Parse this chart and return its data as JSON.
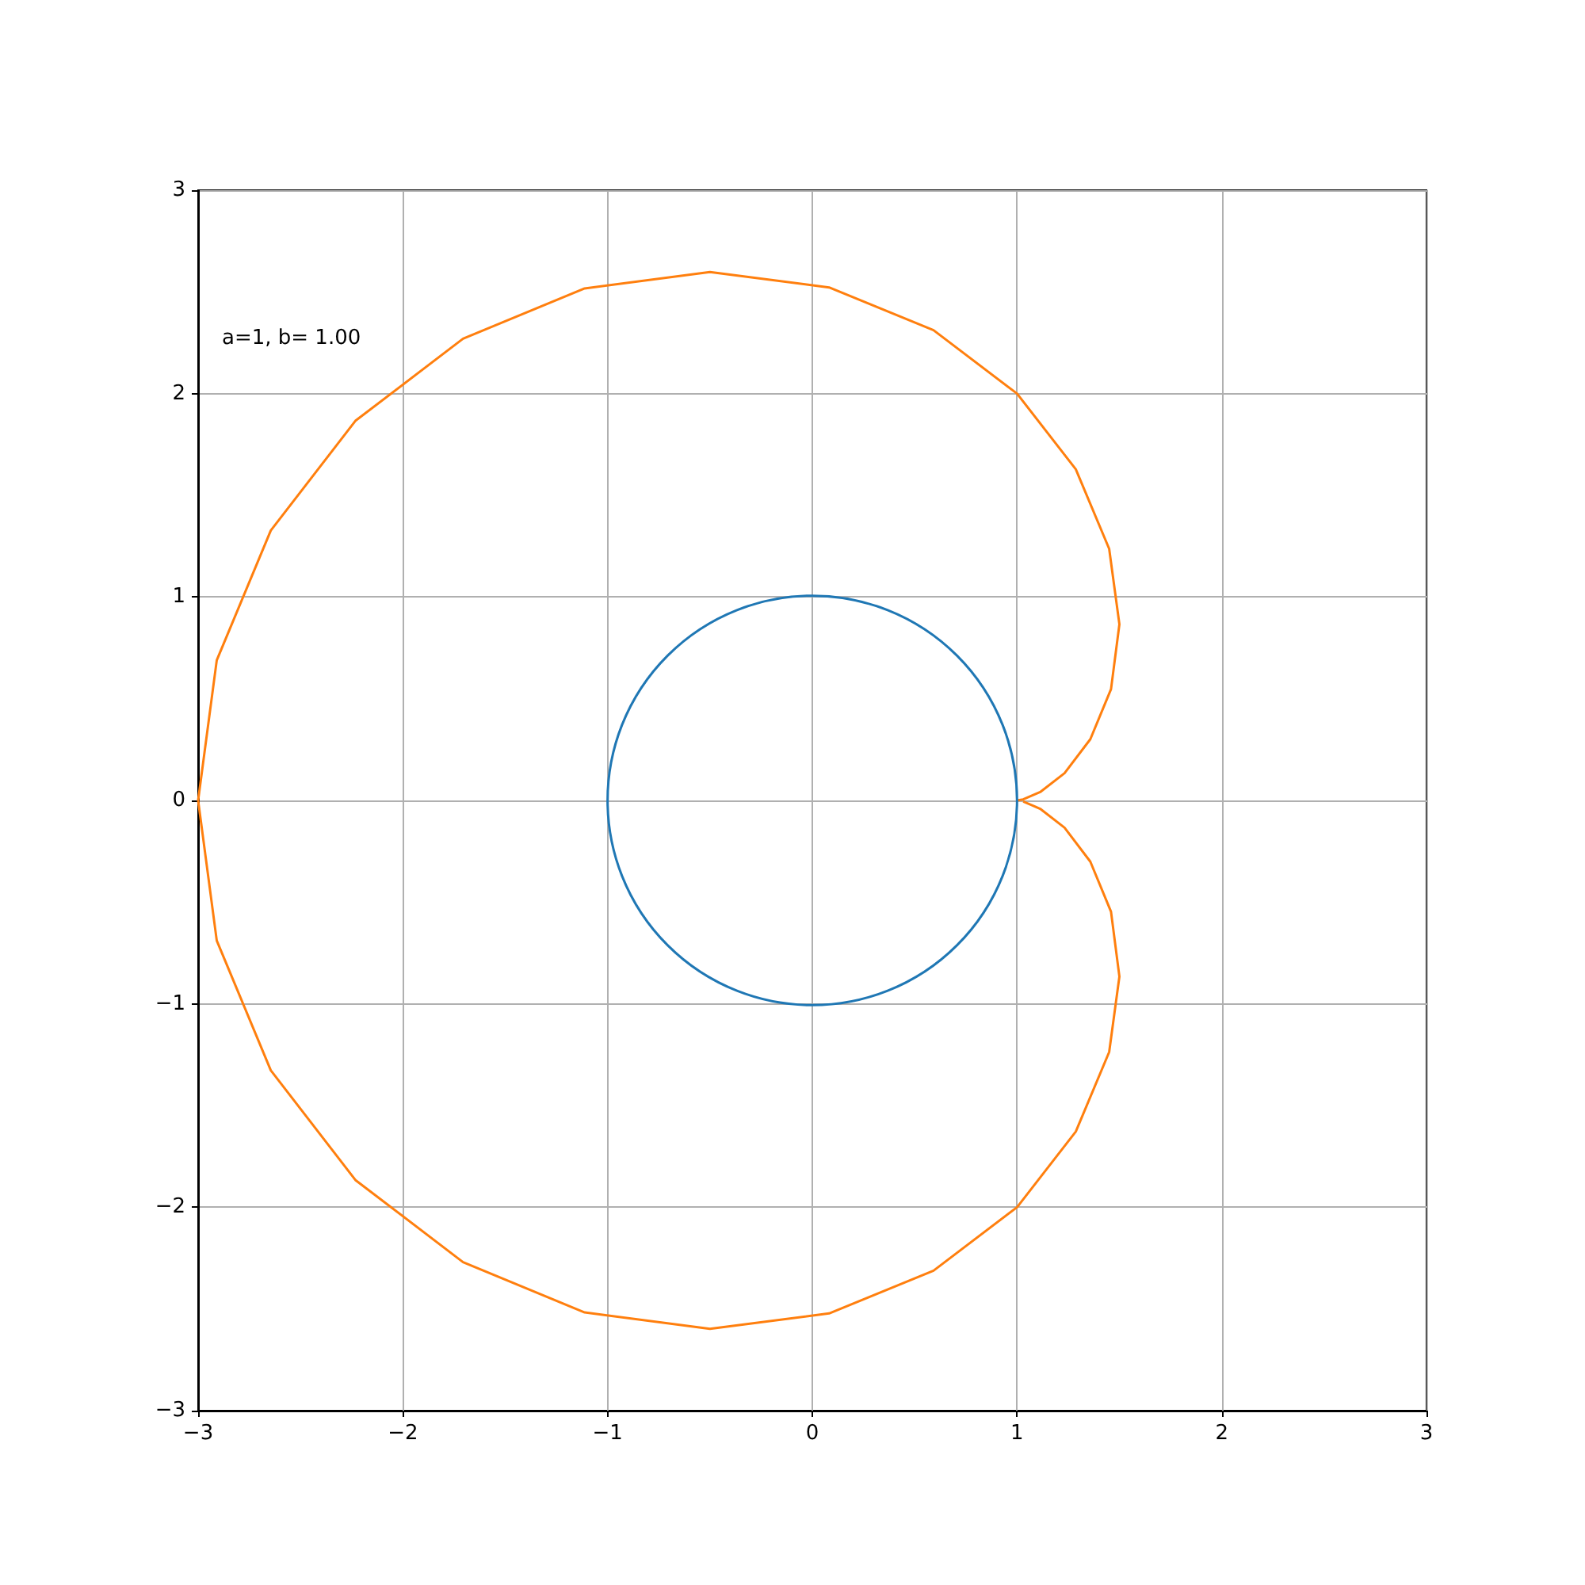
{
  "chart_data": {
    "type": "line",
    "xlim": [
      -3,
      3
    ],
    "ylim": [
      -3,
      3
    ],
    "xticks": [
      {
        "value": -3,
        "label": "−3"
      },
      {
        "value": -2,
        "label": "−2"
      },
      {
        "value": -1,
        "label": "−1"
      },
      0,
      1,
      2,
      3
    ],
    "yticks": [
      {
        "value": -3,
        "label": "−3"
      },
      {
        "value": -2,
        "label": "−2"
      },
      {
        "value": -1,
        "label": "−1"
      },
      0,
      1,
      2,
      3
    ],
    "grid": true,
    "marker": "none",
    "line_style": "solid",
    "series": [
      {
        "color": "#ff7f0e",
        "x": [
          1,
          1.03,
          1.113,
          1.232,
          1.358,
          1.459,
          1.5,
          1.45,
          1.287,
          1,
          0.592,
          0.082,
          -0.5,
          -1.112,
          -1.706,
          -2.232,
          -2.645,
          -2.909,
          -3,
          -2.909,
          -2.645,
          -2.232,
          -1.706,
          -1.112,
          -0.5,
          0.082,
          0.592,
          1,
          1.287,
          1.45,
          1.5,
          1.459,
          1.358,
          1.232,
          1.113,
          1.03
        ],
        "values": [
          0,
          0.005,
          0.041,
          0.134,
          0.301,
          0.547,
          0.866,
          1.237,
          1.628,
          2,
          2.312,
          2.522,
          2.598,
          2.517,
          2.27,
          1.866,
          1.327,
          0.689,
          0,
          -0.689,
          -1.327,
          -1.866,
          -2.27,
          -2.517,
          -2.598,
          -2.522,
          -2.312,
          -2,
          -1.628,
          -1.237,
          -0.866,
          -0.547,
          -0.301,
          -0.134,
          -0.041,
          -0.005
        ]
      }
    ],
    "annotations": [
      "a=1, b= 1.00"
    ]
  }
}
